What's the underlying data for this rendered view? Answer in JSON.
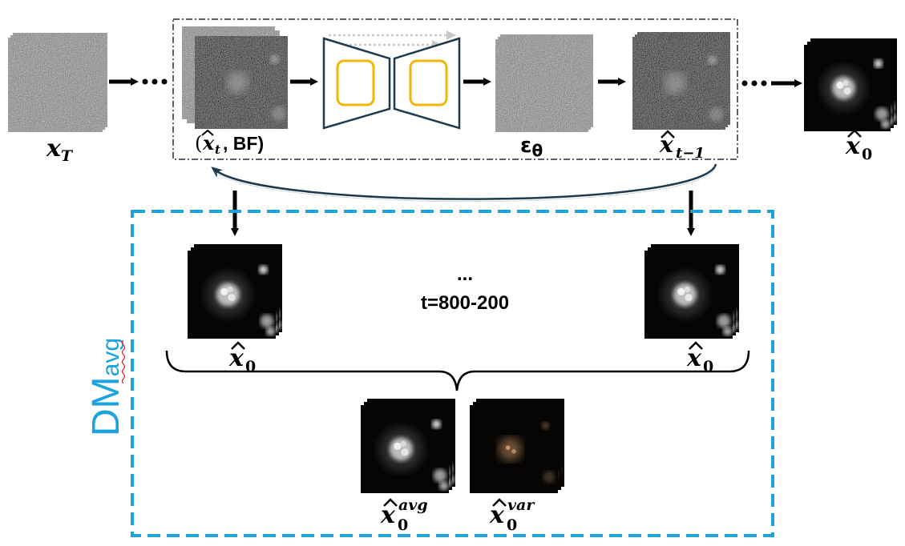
{
  "colors": {
    "dm_blue": "#1aa3dd",
    "unet_fill": "#ffffff",
    "unet_stroke": "#1f3a4d",
    "unet_block": "#f2b705",
    "arc": "#1f3a4d",
    "var_tint": "#c8956a"
  },
  "labels": {
    "xT_base": "x",
    "xT_sub": "T",
    "input_pair_open": "(",
    "input_pair_x": "x",
    "input_pair_sub": "t",
    "input_pair_rest": ", BF)",
    "eps_base": "ε",
    "eps_sub": "θ",
    "xt1_base": "x",
    "xt1_sub": "t−1",
    "x0_top_base": "x",
    "x0_top_sub": "0",
    "dm_main": "DM",
    "dm_sub": "avg",
    "mid_dots": "...",
    "t_range": "t=800-200",
    "x0_left_base": "x",
    "x0_left_sub": "0",
    "x0_right_base": "x",
    "x0_right_sub": "0",
    "avg_base": "x",
    "avg_sub": "0",
    "avg_sup": "avg",
    "var_base": "x",
    "var_sub": "0",
    "var_sup": "var"
  }
}
